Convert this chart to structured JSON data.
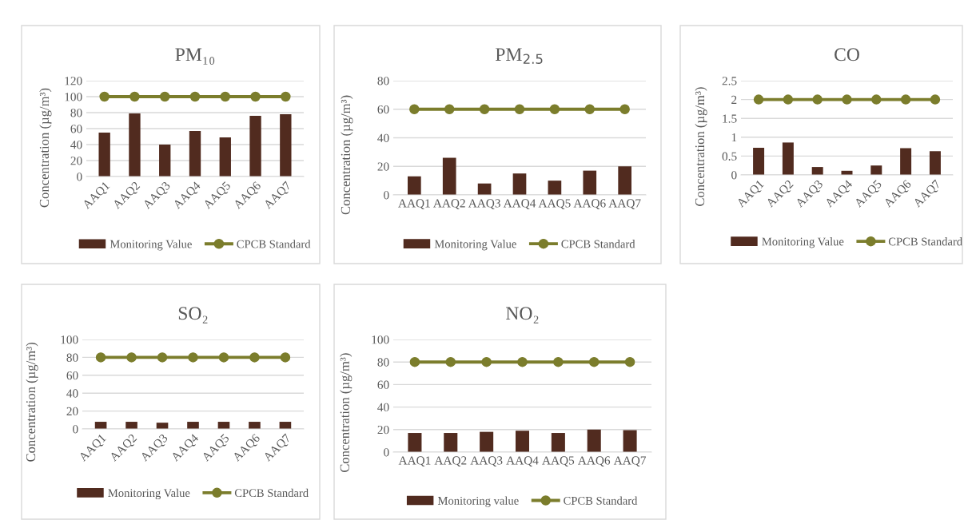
{
  "chart_data": [
    {
      "type": "bar",
      "title": "PM₁₀",
      "ylabel": "Concentration (µg/m³)",
      "categories": [
        "AAQ1",
        "AAQ2",
        "AAQ3",
        "AAQ4",
        "AAQ5",
        "AAQ6",
        "AAQ7"
      ],
      "ylim": [
        0,
        120
      ],
      "yticks": [
        0,
        20,
        40,
        60,
        80,
        100,
        120
      ],
      "grid": "y",
      "legend": "bottom",
      "marker": "circle",
      "series": [
        {
          "name": "Monitoring Value",
          "color": "#512b1f",
          "values": [
            55,
            79,
            40,
            57,
            49,
            76,
            78
          ]
        },
        {
          "name": "CPCB Standard",
          "type": "line",
          "color": "#7b7d2c",
          "values": [
            100,
            100,
            100,
            100,
            100,
            100,
            100
          ]
        }
      ]
    },
    {
      "type": "bar",
      "title": "PM$_{2.5}$",
      "ylabel": "Concentration (µg/m³)",
      "categories": [
        "AAQ1",
        "AAQ2",
        "AAQ3",
        "AAQ4",
        "AAQ5",
        "AAQ6",
        "AAQ7"
      ],
      "ylim": [
        0,
        80
      ],
      "yticks": [
        0,
        20,
        40,
        60,
        80
      ],
      "grid": "y",
      "legend": "bottom",
      "marker": "circle",
      "series": [
        {
          "name": "Monitoring Value",
          "color": "#512b1f",
          "values": [
            13,
            26,
            8,
            15,
            10,
            17,
            20
          ]
        },
        {
          "name": "CPCB Standard",
          "type": "line",
          "color": "#7b7d2c",
          "values": [
            60,
            60,
            60,
            60,
            60,
            60,
            60
          ]
        }
      ]
    },
    {
      "type": "bar",
      "title": "CO",
      "ylabel": "Concentration (µg/m³)",
      "categories": [
        "AAQ1",
        "AAQ2",
        "AAQ3",
        "AAQ4",
        "AAQ5",
        "AAQ6",
        "AAQ7"
      ],
      "ylim": [
        0,
        2.5
      ],
      "yticks": [
        0,
        0.5,
        1,
        1.5,
        2,
        2.5
      ],
      "grid": "y",
      "legend": "bottom",
      "marker": "circle",
      "series": [
        {
          "name": "Monitoring Value",
          "color": "#512b1f",
          "values": [
            0.72,
            0.86,
            0.21,
            0.11,
            0.25,
            0.71,
            0.63
          ]
        },
        {
          "name": "CPCB Standard",
          "type": "line",
          "color": "#7b7d2c",
          "values": [
            2,
            2,
            2,
            2,
            2,
            2,
            2
          ]
        }
      ]
    },
    {
      "type": "bar",
      "title": "SO₂",
      "ylabel": "Concentration (µg/m³)",
      "categories": [
        "AAQ1",
        "AAQ2",
        "AAQ3",
        "AAQ4",
        "AAQ5",
        "AAQ6",
        "AAQ7"
      ],
      "ylim": [
        0,
        100
      ],
      "yticks": [
        0,
        20,
        40,
        60,
        80,
        100
      ],
      "grid": "y",
      "legend": "bottom",
      "marker": "circle",
      "series": [
        {
          "name": "Monitoring Value",
          "color": "#512b1f",
          "values": [
            8,
            8,
            7,
            8,
            8,
            8,
            8
          ]
        },
        {
          "name": "CPCB Standard",
          "type": "line",
          "color": "#7b7d2c",
          "values": [
            80,
            80,
            80,
            80,
            80,
            80,
            80
          ]
        }
      ]
    },
    {
      "type": "bar",
      "title": "NO₂",
      "ylabel": "Concentration (µg/m³)",
      "categories": [
        "AAQ1",
        "AAQ2",
        "AAQ3",
        "AAQ4",
        "AAQ5",
        "AAQ6",
        "AAQ7"
      ],
      "ylim": [
        0,
        100
      ],
      "yticks": [
        0,
        20,
        40,
        60,
        80,
        100
      ],
      "grid": "y",
      "legend": "bottom",
      "marker": "circle",
      "series": [
        {
          "name": "Monitoring value",
          "color": "#512b1f",
          "values": [
            17,
            17,
            18,
            19,
            17,
            20,
            19.5
          ]
        },
        {
          "name": "CPCB Standard",
          "type": "line",
          "color": "#7b7d2c",
          "values": [
            80,
            80,
            80,
            80,
            80,
            80,
            80
          ]
        }
      ]
    }
  ]
}
